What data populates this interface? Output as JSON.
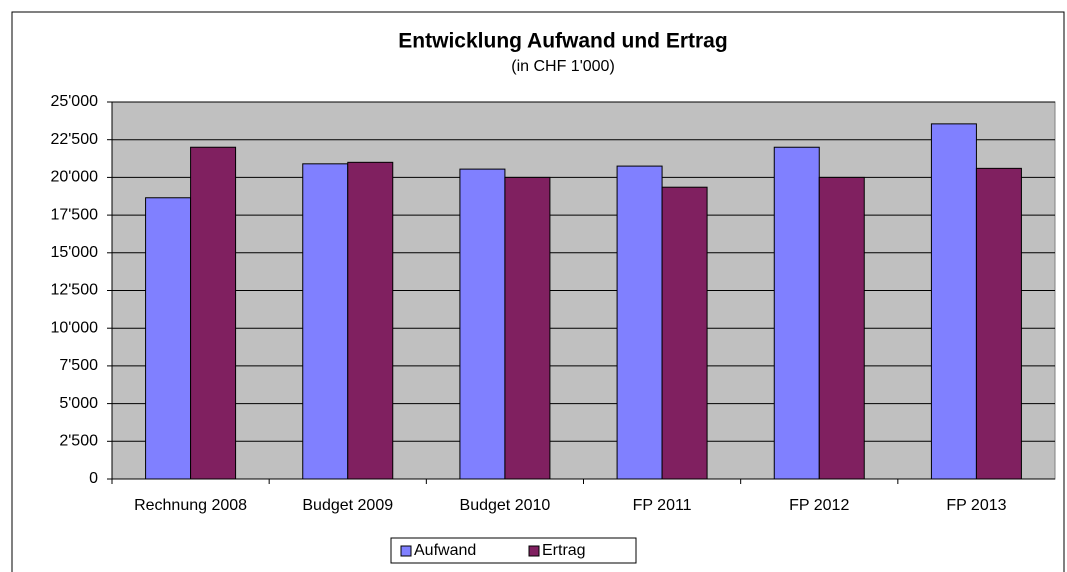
{
  "chart_data": {
    "type": "bar",
    "title": "Entwicklung Aufwand und Ertrag",
    "subtitle": "(in CHF 1'000)",
    "categories": [
      "Rechnung 2008",
      "Budget 2009",
      "Budget 2010",
      "FP 2011",
      "FP 2012",
      "FP 2013"
    ],
    "series": [
      {
        "name": "Aufwand",
        "color": "#8080ff",
        "values": [
          18650,
          20900,
          20550,
          20750,
          22000,
          23550
        ]
      },
      {
        "name": "Ertrag",
        "color": "#802060",
        "values": [
          22000,
          21000,
          20000,
          19350,
          20000,
          20600
        ]
      }
    ],
    "ylim": [
      0,
      25000
    ],
    "yticks": [
      0,
      {
        "value": 2500,
        "label": "2'500"
      },
      {
        "value": 5000,
        "label": "5'000"
      },
      {
        "value": 7500,
        "label": "7'500"
      },
      {
        "value": 10000,
        "label": "10'000"
      },
      {
        "value": 12500,
        "label": "12'500"
      },
      {
        "value": 15000,
        "label": "15'000"
      },
      {
        "value": 17500,
        "label": "17'500"
      },
      {
        "value": 20000,
        "label": "20'000"
      },
      {
        "value": 22500,
        "label": "22'500"
      },
      {
        "value": 25000,
        "label": "25'000"
      }
    ],
    "grid": true,
    "legend": "bottom"
  }
}
